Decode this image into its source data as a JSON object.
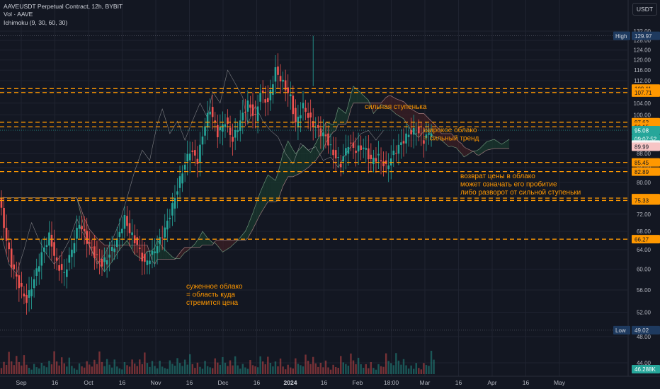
{
  "legend": {
    "title": "AAVEUSDT Perpetual Contract, 12h, BYBIT",
    "vol": "Vol · AAVE",
    "ichimoku": "Ichimoku (9, 30, 60, 30)"
  },
  "currency_button": "USDT",
  "colors": {
    "background": "#131722",
    "grid": "#1f2330",
    "candle_up": "#26a69a",
    "candle_down": "#ef5350",
    "level_line": "#ff9800",
    "annotation_text": "#ff9800",
    "cloud_bull": "#1b4332",
    "cloud_bear": "#4a2025",
    "lagging_line": "#c8c8c8",
    "axis_text": "#b2b5be"
  },
  "chart_data": {
    "type": "candlestick",
    "symbol": "AAVEUSDT Perpetual Contract",
    "interval": "12h",
    "exchange": "BYBIT",
    "y_scale": "log",
    "ylim": [
      42,
      133
    ],
    "y_ticks": [
      "132.00",
      "128.00",
      "124.00",
      "120.00",
      "116.00",
      "112.00",
      "108.00",
      "104.00",
      "100.00",
      "96.00",
      "92.00",
      "88.00",
      "84.00",
      "80.00",
      "76.00",
      "72.00",
      "68.00",
      "64.00",
      "60.00",
      "56.00",
      "52.00",
      "48.00",
      "44.00"
    ],
    "x_ticks": [
      "Sep",
      "16",
      "Oct",
      "16",
      "Nov",
      "16",
      "Dec",
      "16",
      "2024",
      "16",
      "Feb",
      "18:00",
      "Mar",
      "16",
      "Apr",
      "16",
      "May"
    ],
    "horizontal_levels": [
      109.11,
      107.71,
      97.62,
      96.15,
      85.45,
      82.89,
      75.92,
      75.33,
      66.27
    ],
    "price_labels": [
      {
        "text": "High",
        "value": "129.97",
        "kind": "high"
      },
      {
        "text": "",
        "value": "109.11",
        "kind": "level"
      },
      {
        "text": "",
        "value": "107.71",
        "kind": "level"
      },
      {
        "text": "",
        "value": "97.62",
        "kind": "level"
      },
      {
        "text": "",
        "value": "96.15",
        "kind": "level"
      },
      {
        "text": "",
        "value": "95.08",
        "kind": "last"
      },
      {
        "text": "",
        "value": "09:07:52",
        "kind": "countdown"
      },
      {
        "text": "",
        "value": "90.65",
        "kind": "bid"
      },
      {
        "text": "",
        "value": "89.99",
        "kind": "ask"
      },
      {
        "text": "",
        "value": "85.45",
        "kind": "level"
      },
      {
        "text": "",
        "value": "82.89",
        "kind": "level"
      },
      {
        "text": "",
        "value": "75.92",
        "kind": "level"
      },
      {
        "text": "",
        "value": "75.33",
        "kind": "level"
      },
      {
        "text": "",
        "value": "66.27",
        "kind": "level"
      },
      {
        "text": "Low",
        "value": "49.02",
        "kind": "low"
      },
      {
        "text": "",
        "value": "46.288K",
        "kind": "volume"
      }
    ],
    "annotations": [
      {
        "lines": [
          "сильная ступенька"
        ]
      },
      {
        "lines": [
          "широкое облако",
          "= сильный тренд"
        ]
      },
      {
        "lines": [
          "возврат цены в облако",
          "может означать его пробитие",
          "либо разворот от сильной ступеньки"
        ]
      },
      {
        "lines": [
          "суженное облако",
          "= область куда",
          "стремится цена"
        ]
      }
    ],
    "price_path": [
      [
        0,
        76
      ],
      [
        3,
        66
      ],
      [
        5,
        61
      ],
      [
        8,
        57
      ],
      [
        11,
        54
      ],
      [
        14,
        58
      ],
      [
        17,
        63
      ],
      [
        20,
        67
      ],
      [
        23,
        61
      ],
      [
        26,
        59
      ],
      [
        29,
        64
      ],
      [
        32,
        70
      ],
      [
        35,
        66
      ],
      [
        38,
        63
      ],
      [
        41,
        61
      ],
      [
        44,
        63
      ],
      [
        47,
        66
      ],
      [
        50,
        71
      ],
      [
        52,
        68
      ],
      [
        55,
        65
      ],
      [
        58,
        61
      ],
      [
        61,
        63
      ],
      [
        64,
        66
      ],
      [
        67,
        70
      ],
      [
        70,
        76
      ],
      [
        73,
        83
      ],
      [
        76,
        89
      ],
      [
        79,
        86
      ],
      [
        82,
        97
      ],
      [
        84,
        102
      ],
      [
        87,
        94
      ],
      [
        90,
        98
      ],
      [
        93,
        92
      ],
      [
        96,
        98
      ],
      [
        99,
        104
      ],
      [
        102,
        99
      ],
      [
        104,
        108
      ],
      [
        107,
        104
      ],
      [
        110,
        116
      ],
      [
        113,
        111
      ],
      [
        116,
        106
      ],
      [
        118,
        97
      ],
      [
        121,
        103
      ],
      [
        124,
        98
      ],
      [
        127,
        95
      ],
      [
        130,
        93
      ],
      [
        133,
        88
      ],
      [
        136,
        85
      ],
      [
        139,
        91
      ],
      [
        142,
        89
      ],
      [
        145,
        90
      ],
      [
        148,
        86
      ],
      [
        151,
        87
      ],
      [
        154,
        84
      ],
      [
        157,
        88
      ],
      [
        160,
        91
      ],
      [
        163,
        94
      ],
      [
        166,
        95
      ],
      [
        169,
        92
      ],
      [
        172,
        95
      ]
    ],
    "volume_pattern": [
      0.18,
      0.32,
      0.22,
      0.5,
      0.28,
      0.2,
      0.42,
      0.3,
      0.24,
      0.6,
      0.34,
      0.26,
      0.2,
      0.46,
      0.3,
      0.22,
      0.38,
      0.25
    ]
  }
}
